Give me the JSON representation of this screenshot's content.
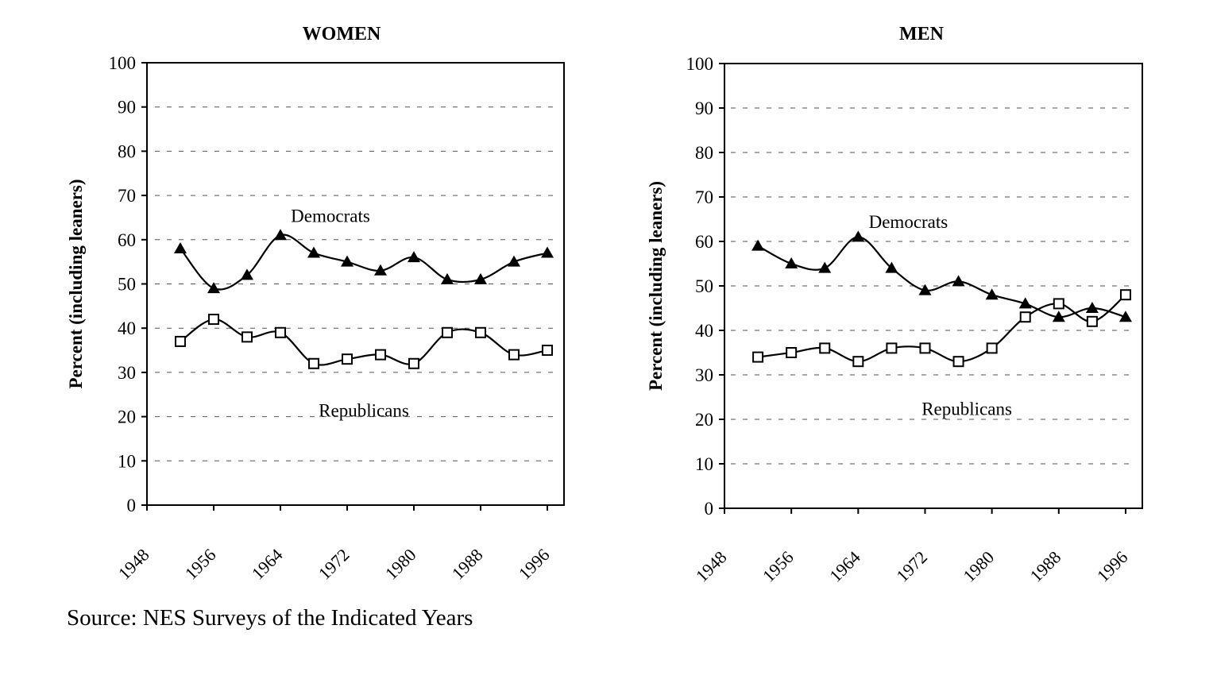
{
  "chart_data": [
    {
      "type": "line",
      "title": "WOMEN",
      "ylabel": "Percent (including leaners)",
      "xlabel": "",
      "xlim": [
        1948,
        1998
      ],
      "ylim": [
        0,
        100
      ],
      "x_ticks": [
        "1948",
        "1956",
        "1964",
        "1972",
        "1980",
        "1988",
        "1996"
      ],
      "y_ticks": [
        "0",
        "10",
        "20",
        "30",
        "40",
        "50",
        "60",
        "70",
        "80",
        "90",
        "100"
      ],
      "x": [
        1952,
        1956,
        1960,
        1964,
        1968,
        1972,
        1976,
        1980,
        1984,
        1988,
        1992,
        1996
      ],
      "series": [
        {
          "name": "Democrats",
          "marker": "filled-triangle",
          "values": [
            58,
            49,
            52,
            61,
            57,
            55,
            53,
            56,
            51,
            51,
            55,
            57
          ]
        },
        {
          "name": "Republicans",
          "marker": "open-square",
          "values": [
            37,
            42,
            38,
            39,
            32,
            33,
            34,
            32,
            39,
            39,
            34,
            35
          ]
        }
      ],
      "grid": "horizontal dashed",
      "annotations": [
        {
          "text": "Democrats",
          "x": 1970,
          "y": 64
        },
        {
          "text": "Republicans",
          "x": 1974,
          "y": 20
        }
      ]
    },
    {
      "type": "line",
      "title": "MEN",
      "ylabel": "Percent (including leaners)",
      "xlabel": "",
      "xlim": [
        1948,
        1998
      ],
      "ylim": [
        0,
        100
      ],
      "x_ticks": [
        "1948",
        "1956",
        "1964",
        "1972",
        "1980",
        "1988",
        "1996"
      ],
      "y_ticks": [
        "0",
        "10",
        "20",
        "30",
        "40",
        "50",
        "60",
        "70",
        "80",
        "90",
        "100"
      ],
      "x": [
        1952,
        1956,
        1960,
        1964,
        1968,
        1972,
        1976,
        1980,
        1984,
        1988,
        1992,
        1996
      ],
      "series": [
        {
          "name": "Democrats",
          "marker": "filled-triangle",
          "values": [
            59,
            55,
            54,
            61,
            54,
            49,
            51,
            48,
            46,
            43,
            45,
            43
          ]
        },
        {
          "name": "Republicans",
          "marker": "open-square",
          "values": [
            34,
            35,
            36,
            33,
            36,
            36,
            33,
            36,
            43,
            46,
            42,
            48
          ]
        }
      ],
      "grid": "horizontal dashed",
      "annotations": [
        {
          "text": "Democrats",
          "x": 1970,
          "y": 63
        },
        {
          "text": "Republicans",
          "x": 1977,
          "y": 21
        }
      ]
    }
  ],
  "source_note": "Source: NES Surveys of the Indicated Years"
}
